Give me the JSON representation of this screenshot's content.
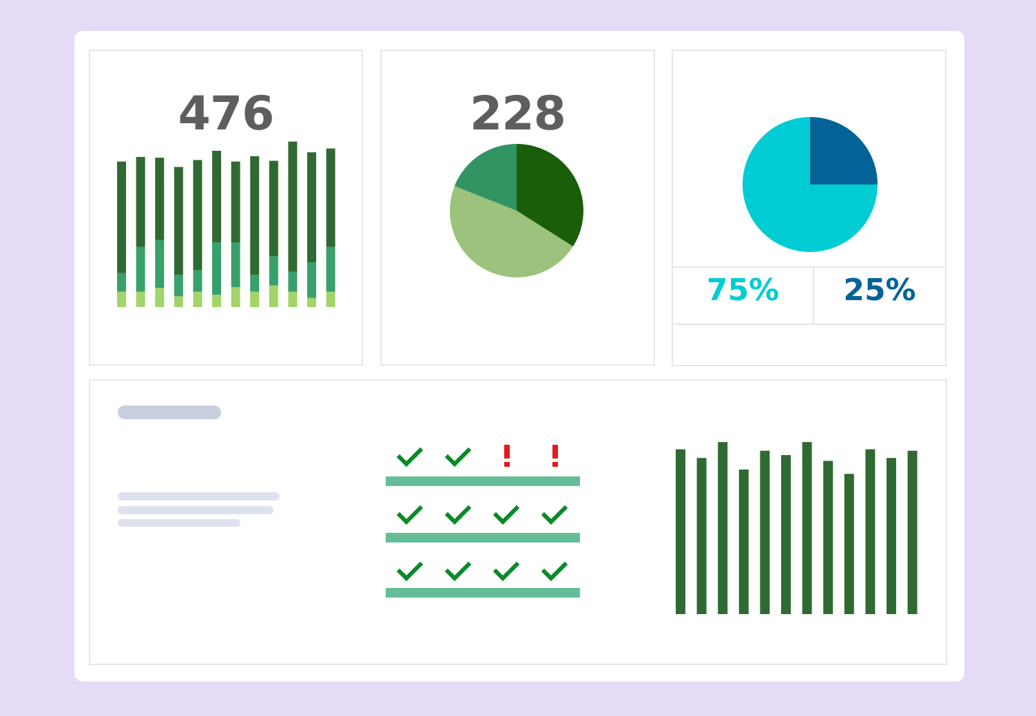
{
  "colors": {
    "background": "#e6dbf7",
    "dark_green": "#2f6a33",
    "mid_green": "#38a06b",
    "light_green": "#a3d46a",
    "pie_dark": "#1a5e0a",
    "pie_mid": "#339463",
    "pie_light": "#9dc27d",
    "cyan": "#00cdd3",
    "navy": "#036396",
    "table_line": "#64be98",
    "check": "#0c8a2a",
    "warn": "#e81818"
  },
  "cards": {
    "stacked": {
      "number": "476"
    },
    "pie": {
      "number": "228"
    },
    "split": {
      "left_pct": "75%",
      "right_pct": "25%"
    }
  },
  "chart_data": [
    {
      "type": "bar",
      "stacked": true,
      "series": [
        {
          "values": [
            20,
            20,
            25,
            14,
            20,
            16,
            26,
            20,
            28,
            20,
            12,
            20
          ]
        },
        {
          "values": [
            24,
            58,
            62,
            28,
            28,
            68,
            58,
            22,
            38,
            26,
            46,
            58
          ]
        },
        {
          "values": [
            145,
            117,
            107,
            140,
            143,
            119,
            105,
            154,
            124,
            169,
            143,
            128
          ]
        }
      ],
      "ylim": [
        0,
        220
      ]
    },
    {
      "type": "pie",
      "slices": [
        {
          "label": "dark",
          "value": 34
        },
        {
          "label": "light",
          "value": 47
        },
        {
          "label": "mid",
          "value": 19
        }
      ]
    },
    {
      "type": "pie",
      "slices": [
        {
          "label": "navy",
          "value": 25
        },
        {
          "label": "cyan",
          "value": 75
        }
      ]
    },
    {
      "type": "bar",
      "values": [
        228,
        216,
        238,
        200,
        226,
        220,
        238,
        212,
        194,
        228,
        216,
        226
      ],
      "ylim": [
        0,
        240
      ]
    }
  ],
  "status_grid": [
    [
      "check",
      "check",
      "warn",
      "warn"
    ],
    [
      "check",
      "check",
      "check",
      "check"
    ],
    [
      "check",
      "check",
      "check",
      "check"
    ]
  ]
}
